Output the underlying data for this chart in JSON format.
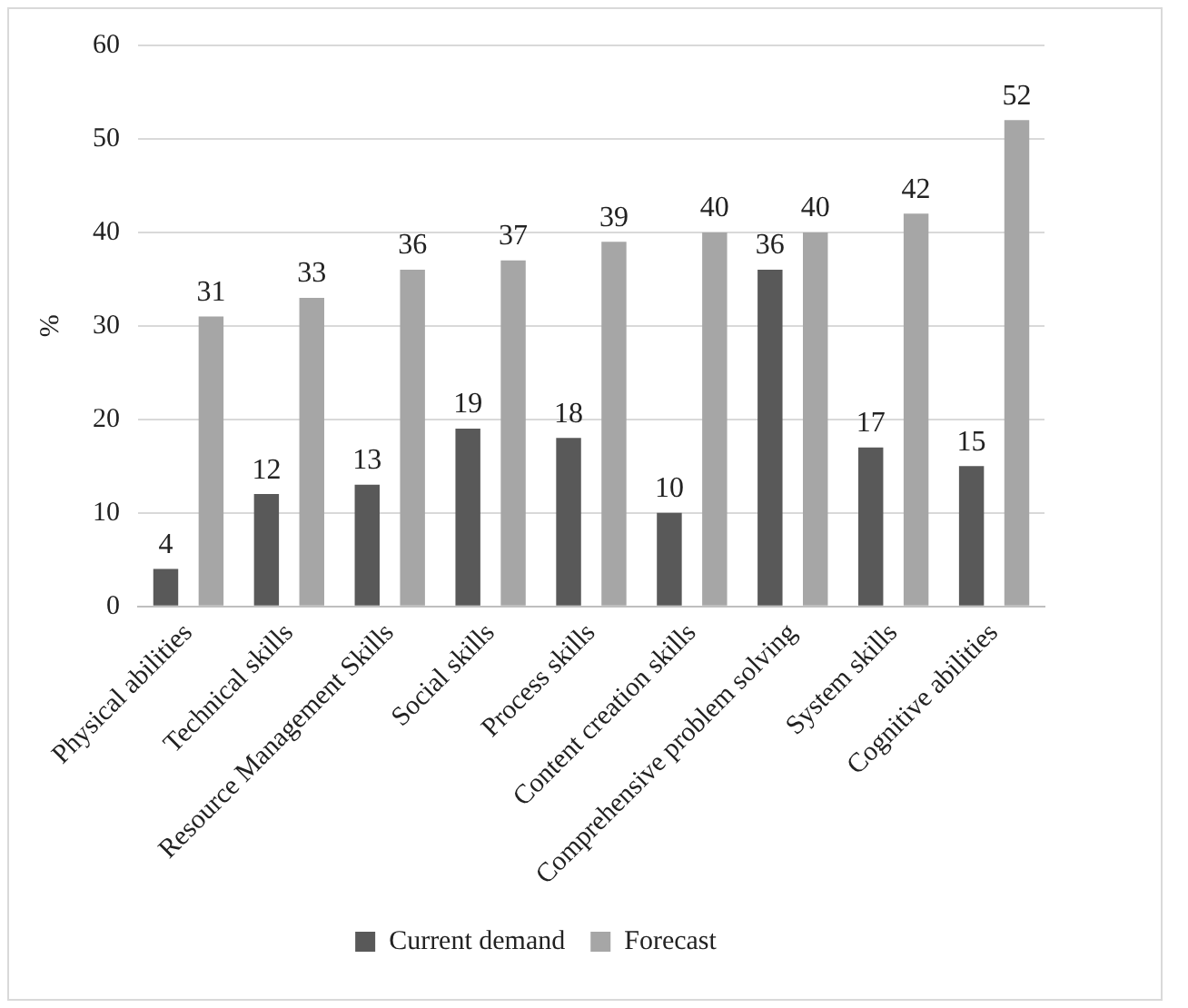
{
  "chart_data": {
    "type": "bar",
    "ylabel": "%",
    "categories": [
      "Physical abilities",
      "Technical skills",
      "Resource Management Skills",
      "Social skills",
      "Process skills",
      "Content creation skills",
      "Comprehensive problem solving",
      "System skills",
      "Cognitive abilities"
    ],
    "series": [
      {
        "name": "Current demand",
        "color": "#595959",
        "values": [
          4,
          12,
          13,
          19,
          18,
          10,
          36,
          17,
          15
        ]
      },
      {
        "name": "Forecast",
        "color": "#a6a6a6",
        "values": [
          31,
          33,
          36,
          37,
          39,
          40,
          40,
          42,
          52
        ]
      }
    ],
    "ylim": [
      0,
      60
    ],
    "yticks": [
      0,
      10,
      20,
      30,
      40,
      50,
      60
    ],
    "grid": "y",
    "legend": "bottom",
    "data_labels": true
  }
}
